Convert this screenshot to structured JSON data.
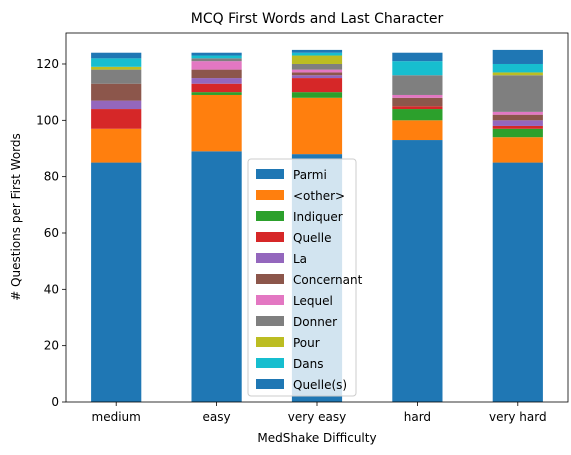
{
  "chart_data": {
    "type": "bar",
    "stacked": true,
    "title": "MCQ First Words and Last Character",
    "xlabel": "MedShake Difficulty",
    "ylabel": "# Questions per First Words",
    "categories": [
      "medium",
      "easy",
      "very easy",
      "hard",
      "very hard"
    ],
    "ylim": [
      0,
      131
    ],
    "yticks": [
      0,
      20,
      40,
      60,
      80,
      100,
      120
    ],
    "grid": false,
    "legend_position": "center",
    "series": [
      {
        "name": "Parmi",
        "color": "#1f77b4",
        "values": [
          85,
          89,
          88,
          93,
          85
        ]
      },
      {
        "name": "<other>",
        "color": "#ff7f0e",
        "values": [
          12,
          20,
          20,
          7,
          9
        ]
      },
      {
        "name": "Indiquer",
        "color": "#2ca02c",
        "values": [
          0,
          1,
          2,
          4,
          3
        ]
      },
      {
        "name": "Quelle",
        "color": "#d62728",
        "values": [
          7,
          3,
          5,
          1,
          1
        ]
      },
      {
        "name": "La",
        "color": "#9467bd",
        "values": [
          3,
          2,
          1,
          0,
          2
        ]
      },
      {
        "name": "Concernant",
        "color": "#8c564b",
        "values": [
          6,
          3,
          1,
          3,
          2
        ]
      },
      {
        "name": "Lequel",
        "color": "#e377c2",
        "values": [
          0,
          3,
          1,
          1,
          1
        ]
      },
      {
        "name": "Donner",
        "color": "#7f7f7f",
        "values": [
          5,
          1,
          2,
          7,
          13
        ]
      },
      {
        "name": "Pour",
        "color": "#bcbd22",
        "values": [
          1,
          0,
          3,
          0,
          1
        ]
      },
      {
        "name": "Dans",
        "color": "#17becf",
        "values": [
          3,
          1,
          1,
          5,
          3
        ]
      },
      {
        "name": "Quelle(s)",
        "color": "#1f77b4",
        "values": [
          2,
          1,
          1,
          3,
          5
        ]
      }
    ]
  }
}
